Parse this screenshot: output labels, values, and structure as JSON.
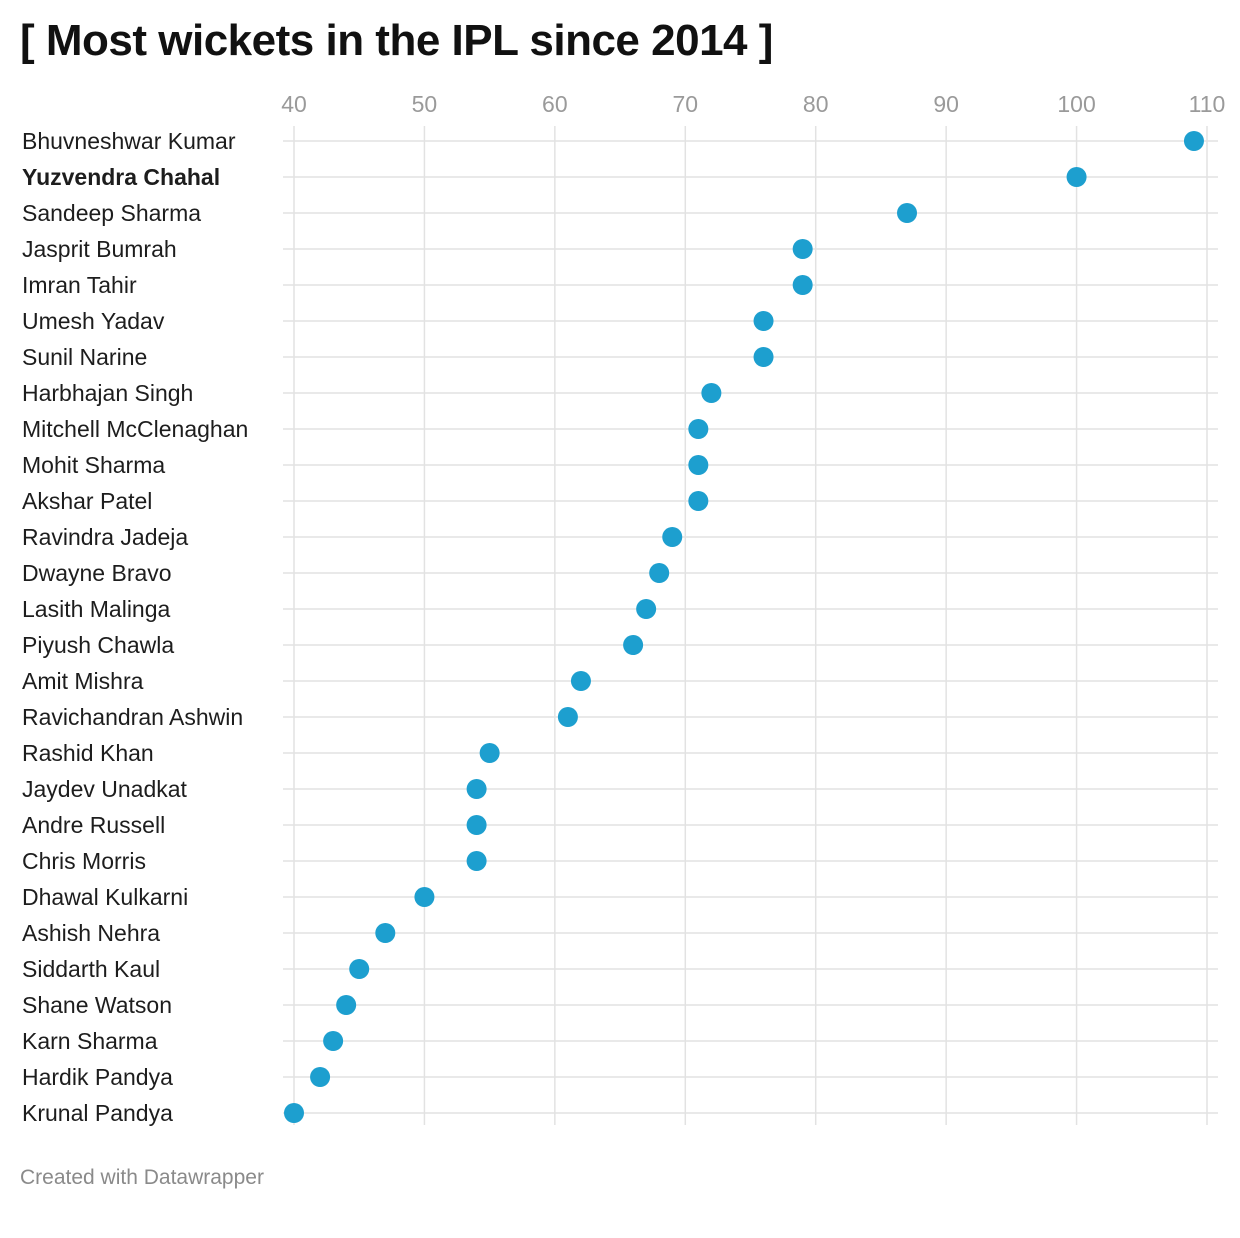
{
  "page": {
    "title": "[ Most wickets in the IPL since 2014 ]",
    "footer": "Created with Datawrapper"
  },
  "chart_data": {
    "type": "scatter",
    "orientation": "horizontal-dot-plot",
    "title": "[ Most wickets in the IPL since 2014 ]",
    "xlabel": "",
    "ylabel": "",
    "xlim": [
      40,
      110
    ],
    "x_ticks": [
      40,
      50,
      60,
      70,
      80,
      90,
      100,
      110
    ],
    "x_axis_position": "top",
    "grid": true,
    "legend": "none",
    "highlighted_category": "Yuzvendra Chahal",
    "colors": {
      "dot": "#1d9fcf",
      "grid": "#e2e2e2",
      "tick_text": "#9a9a9a",
      "label_text": "#1d1d1d"
    },
    "categories": [
      "Bhuvneshwar Kumar",
      "Yuzvendra Chahal",
      "Sandeep Sharma",
      "Jasprit Bumrah",
      "Imran Tahir",
      "Umesh Yadav",
      "Sunil Narine",
      "Harbhajan Singh",
      "Mitchell McClenaghan",
      "Mohit Sharma",
      "Akshar Patel",
      "Ravindra Jadeja",
      "Dwayne Bravo",
      "Lasith Malinga",
      "Piyush Chawla",
      "Amit Mishra",
      "Ravichandran Ashwin",
      "Rashid Khan",
      "Jaydev Unadkat",
      "Andre Russell",
      "Chris Morris",
      "Dhawal Kulkarni",
      "Ashish Nehra",
      "Siddarth Kaul",
      "Shane Watson",
      "Karn Sharma",
      "Hardik Pandya",
      "Krunal Pandya"
    ],
    "values": [
      109,
      100,
      87,
      79,
      79,
      76,
      76,
      72,
      71,
      71,
      71,
      69,
      68,
      67,
      66,
      62,
      61,
      55,
      54,
      54,
      54,
      50,
      47,
      45,
      44,
      43,
      42,
      40
    ]
  }
}
